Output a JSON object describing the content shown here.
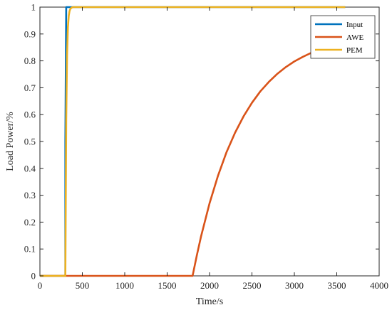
{
  "chart_data": {
    "type": "line",
    "title": "",
    "xlabel": "Time/s",
    "ylabel": "Load Power/%",
    "xlim": [
      0,
      4000
    ],
    "ylim": [
      0,
      1
    ],
    "x_ticks": [
      "0",
      "500",
      "1000",
      "1500",
      "2000",
      "2500",
      "3000",
      "3500",
      "4000"
    ],
    "y_ticks": [
      "0",
      "0.1",
      "0.2",
      "0.3",
      "0.4",
      "0.5",
      "0.6",
      "0.7",
      "0.8",
      "0.9",
      "1"
    ],
    "grid": false,
    "legend_position": "top-right",
    "series": [
      {
        "name": "Input",
        "color": "#0072BD",
        "x": [
          0,
          300,
          300,
          310,
          3600
        ],
        "y": [
          0,
          0,
          0.5,
          1,
          1
        ]
      },
      {
        "name": "AWE",
        "color": "#D95319",
        "x": [
          0,
          1800,
          1850,
          1900,
          2000,
          2100,
          2200,
          2300,
          2400,
          2500,
          2600,
          2700,
          2800,
          2900,
          3000,
          3100,
          3200,
          3300,
          3400,
          3500,
          3600
        ],
        "y": [
          0,
          0,
          0.076,
          0.147,
          0.27,
          0.373,
          0.46,
          0.532,
          0.593,
          0.644,
          0.687,
          0.722,
          0.752,
          0.777,
          0.798,
          0.815,
          0.83,
          0.842,
          0.852,
          0.861,
          0.868
        ]
      },
      {
        "name": "PEM",
        "color": "#EDB120",
        "x": [
          0,
          300,
          310,
          320,
          330,
          340,
          350,
          360,
          370,
          380,
          400,
          420,
          450,
          500,
          3600
        ],
        "y": [
          0,
          0,
          0.58,
          0.82,
          0.925,
          0.968,
          0.986,
          0.994,
          0.997,
          0.999,
          1,
          1,
          1,
          1,
          1
        ]
      }
    ]
  }
}
